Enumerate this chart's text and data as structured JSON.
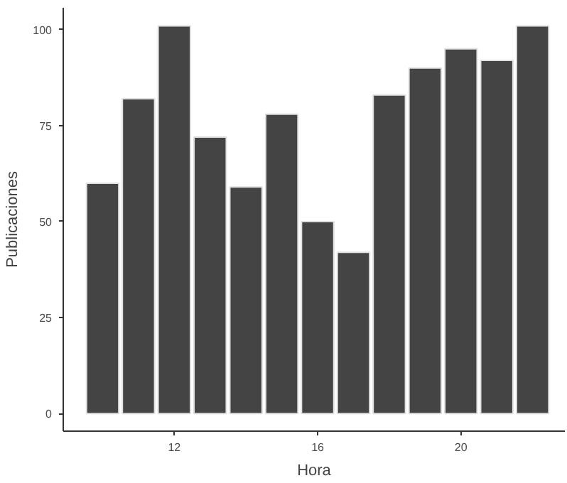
{
  "chart_data": {
    "type": "bar",
    "xlabel": "Hora",
    "ylabel": "Publicaciones",
    "x": [
      10,
      11,
      12,
      13,
      14,
      15,
      16,
      17,
      18,
      19,
      20,
      21,
      22
    ],
    "values": [
      60,
      82,
      101,
      72,
      59,
      78,
      50,
      42,
      83,
      90,
      95,
      92,
      101
    ],
    "color": "#444444",
    "xlim": [
      8.9,
      22.9
    ],
    "xticks": [
      12,
      16,
      20
    ],
    "ylim": [
      -4.6,
      105.7
    ],
    "yticks": [
      0,
      25,
      50,
      75,
      100
    ],
    "grid": false
  }
}
